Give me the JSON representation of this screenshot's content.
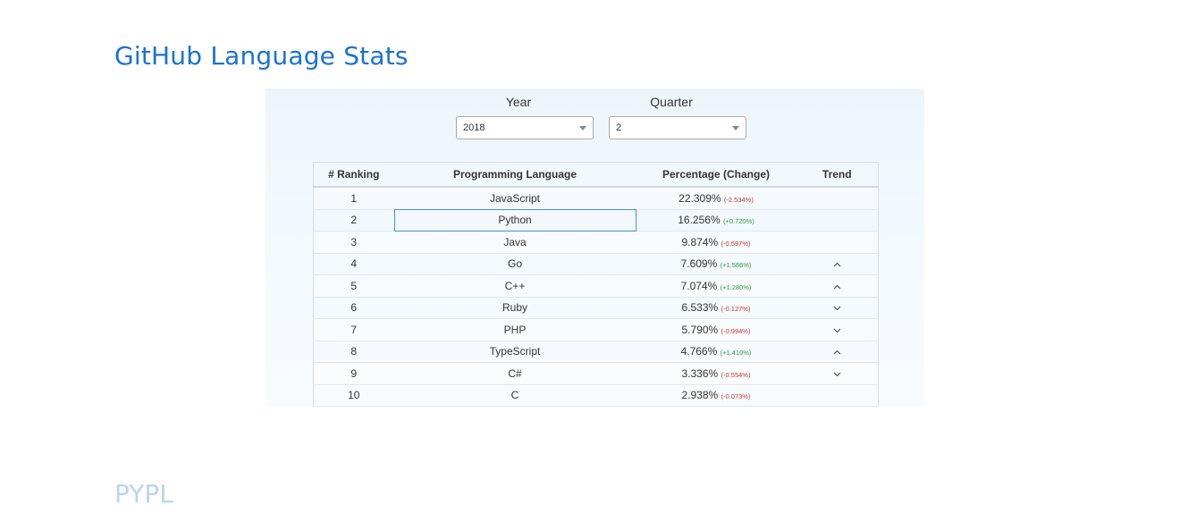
{
  "page": {
    "title": "GitHub Language Stats",
    "next_section_title": "PYPL"
  },
  "filters": {
    "year_label": "Year",
    "year_value": "2018",
    "quarter_label": "Quarter",
    "quarter_value": "2"
  },
  "table": {
    "headers": [
      "# Ranking",
      "Programming Language",
      "Percentage (Change)",
      "Trend"
    ],
    "rows": [
      {
        "rank": "1",
        "language": "JavaScript",
        "percentage": "22.309%",
        "change": "(-2.534%)",
        "direction": "down",
        "trend": ""
      },
      {
        "rank": "2",
        "language": "Python",
        "percentage": "16.256%",
        "change": "(+0.720%)",
        "direction": "up",
        "trend": ""
      },
      {
        "rank": "3",
        "language": "Java",
        "percentage": "9.874%",
        "change": "(-0.597%)",
        "direction": "down",
        "trend": ""
      },
      {
        "rank": "4",
        "language": "Go",
        "percentage": "7.609%",
        "change": "(+1.586%)",
        "direction": "up",
        "trend": "up"
      },
      {
        "rank": "5",
        "language": "C++",
        "percentage": "7.074%",
        "change": "(+1.280%)",
        "direction": "up",
        "trend": "up"
      },
      {
        "rank": "6",
        "language": "Ruby",
        "percentage": "6.533%",
        "change": "(-0.127%)",
        "direction": "down",
        "trend": "down"
      },
      {
        "rank": "7",
        "language": "PHP",
        "percentage": "5.790%",
        "change": "(-0.994%)",
        "direction": "down",
        "trend": "down"
      },
      {
        "rank": "8",
        "language": "TypeScript",
        "percentage": "4.766%",
        "change": "(+1.410%)",
        "direction": "up",
        "trend": "up"
      },
      {
        "rank": "9",
        "language": "C#",
        "percentage": "3.336%",
        "change": "(-0.554%)",
        "direction": "down",
        "trend": "down"
      },
      {
        "rank": "10",
        "language": "C",
        "percentage": "2.938%",
        "change": "(-0.073%)",
        "direction": "down",
        "trend": ""
      }
    ],
    "focused_row": 1
  },
  "colors": {
    "title": "#1a73d0",
    "increase": "#2e9a3a",
    "decrease": "#c0392b"
  }
}
